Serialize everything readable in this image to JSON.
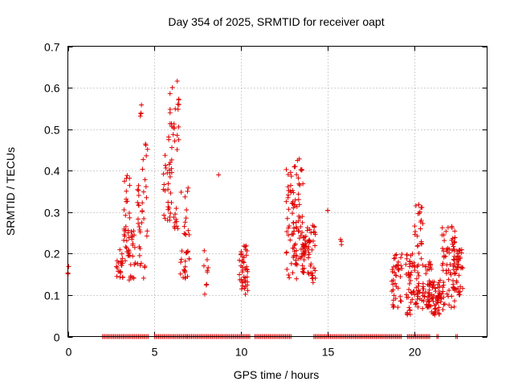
{
  "chart_data": {
    "type": "scatter",
    "title": "Day 354 of 2025, SRMTID for receiver oapt",
    "xlabel": "GPS time / hours",
    "ylabel": "SRMTID / TECUs",
    "xlim": [
      0,
      24.2
    ],
    "ylim": [
      0,
      0.7
    ],
    "xticks": [
      0,
      5,
      10,
      15,
      20
    ],
    "yticks": [
      0,
      0.1,
      0.2,
      0.3,
      0.4,
      0.5,
      0.6,
      0.7
    ],
    "xtick_labels": [
      "0",
      "5",
      "10",
      "15",
      "20"
    ],
    "ytick_labels": [
      "0",
      "0.1",
      "0.2",
      "0.3",
      "0.4",
      "0.5",
      "0.6",
      "0.7"
    ],
    "grid": true,
    "marker": "+",
    "color": "#e00000",
    "series": [
      {
        "name": "SRMTID",
        "clusters": [
          {
            "x": [
              0.0,
              0.05
            ],
            "y": [
              0.15,
              0.17
            ],
            "n": 3
          },
          {
            "x": [
              2.8,
              3.2
            ],
            "y": [
              0.14,
              0.21
            ],
            "n": 22
          },
          {
            "x": [
              3.2,
              3.6
            ],
            "y": [
              0.18,
              0.39
            ],
            "n": 30
          },
          {
            "x": [
              3.5,
              3.9
            ],
            "y": [
              0.13,
              0.26
            ],
            "n": 24
          },
          {
            "x": [
              4.0,
              4.3
            ],
            "y": [
              0.17,
              0.39
            ],
            "n": 22
          },
          {
            "x": [
              4.1,
              4.3
            ],
            "y": [
              0.53,
              0.56
            ],
            "n": 4
          },
          {
            "x": [
              4.3,
              4.6
            ],
            "y": [
              0.14,
              0.47
            ],
            "n": 16
          },
          {
            "x": [
              5.5,
              6.0
            ],
            "y": [
              0.27,
              0.44
            ],
            "n": 30
          },
          {
            "x": [
              5.8,
              6.2
            ],
            "y": [
              0.45,
              0.62
            ],
            "n": 16
          },
          {
            "x": [
              6.1,
              6.4
            ],
            "y": [
              0.26,
              0.31
            ],
            "n": 10
          },
          {
            "x": [
              6.3,
              6.5
            ],
            "y": [
              0.45,
              0.67
            ],
            "n": 10
          },
          {
            "x": [
              6.5,
              7.0
            ],
            "y": [
              0.14,
              0.36
            ],
            "n": 34
          },
          {
            "x": [
              7.8,
              8.1
            ],
            "y": [
              0.1,
              0.25
            ],
            "n": 9
          },
          {
            "x": [
              8.7,
              8.7
            ],
            "y": [
              0.39,
              0.39
            ],
            "n": 1
          },
          {
            "x": [
              9.9,
              10.4
            ],
            "y": [
              0.1,
              0.22
            ],
            "n": 44
          },
          {
            "x": [
              12.6,
              13.2
            ],
            "y": [
              0.13,
              0.41
            ],
            "n": 48
          },
          {
            "x": [
              13.0,
              13.6
            ],
            "y": [
              0.17,
              0.43
            ],
            "n": 48
          },
          {
            "x": [
              13.5,
              14.0
            ],
            "y": [
              0.15,
              0.27
            ],
            "n": 40
          },
          {
            "x": [
              14.0,
              14.3
            ],
            "y": [
              0.13,
              0.27
            ],
            "n": 22
          },
          {
            "x": [
              15.0,
              15.0
            ],
            "y": [
              0.3,
              0.32
            ],
            "n": 2
          },
          {
            "x": [
              15.7,
              15.8
            ],
            "y": [
              0.22,
              0.27
            ],
            "n": 3
          },
          {
            "x": [
              18.7,
              19.3
            ],
            "y": [
              0.07,
              0.2
            ],
            "n": 40
          },
          {
            "x": [
              19.5,
              20.0
            ],
            "y": [
              0.05,
              0.2
            ],
            "n": 40
          },
          {
            "x": [
              20.0,
              20.5
            ],
            "y": [
              0.06,
              0.32
            ],
            "n": 50
          },
          {
            "x": [
              20.5,
              21.0
            ],
            "y": [
              0.07,
              0.18
            ],
            "n": 35
          },
          {
            "x": [
              20.8,
              21.6
            ],
            "y": [
              0.05,
              0.14
            ],
            "n": 60
          },
          {
            "x": [
              21.6,
              22.4
            ],
            "y": [
              0.05,
              0.27
            ],
            "n": 70
          },
          {
            "x": [
              22.2,
              22.8
            ],
            "y": [
              0.1,
              0.21
            ],
            "n": 40
          }
        ],
        "zero_segments": [
          [
            2.0,
            4.7
          ],
          [
            5.0,
            6.9
          ],
          [
            6.9,
            10.5
          ],
          [
            10.8,
            12.9
          ],
          [
            14.2,
            19.3
          ],
          [
            19.6,
            20.9
          ],
          [
            21.3,
            21.4
          ],
          [
            22.4,
            22.5
          ]
        ],
        "zero_step_hours": 0.08
      }
    ]
  }
}
